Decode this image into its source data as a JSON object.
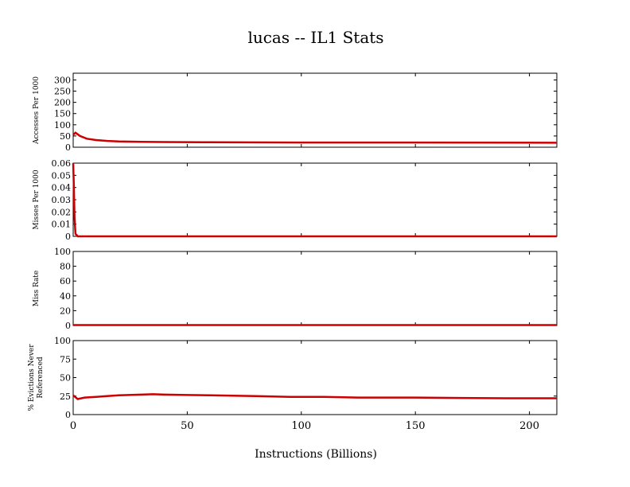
{
  "title": "lucas -- IL1  Stats",
  "colors": {
    "series_main": "#cc0000",
    "series_scatter": "#00cc00",
    "axis": "#000000"
  },
  "chart_data": [
    {
      "type": "line",
      "ylabel": "Accesses Per 1000",
      "xlim": [
        0,
        212
      ],
      "ylim": [
        0,
        330
      ],
      "yticks": [
        0,
        50,
        100,
        150,
        200,
        250,
        300
      ],
      "ytick_labels": [
        "0",
        "50",
        "100",
        "150",
        "200",
        "250",
        "300"
      ],
      "series": [
        {
          "x": [
            0,
            1,
            3,
            6,
            10,
            15,
            20,
            30,
            40,
            60,
            100,
            150,
            212
          ],
          "y": [
            55,
            65,
            50,
            38,
            32,
            28,
            26,
            24,
            23,
            22,
            21,
            21,
            20
          ]
        }
      ]
    },
    {
      "type": "line",
      "ylabel": "Misses Per 1000",
      "xlim": [
        0,
        212
      ],
      "ylim": [
        0,
        0.06
      ],
      "yticks": [
        0,
        0.01,
        0.02,
        0.03,
        0.04,
        0.05,
        0.06
      ],
      "ytick_labels": [
        "0",
        "0.01",
        "0.02",
        "0.03",
        "0.04",
        "0.05",
        "0.06"
      ],
      "series": [
        {
          "x": [
            0,
            0.3,
            0.6,
            1,
            2,
            5,
            50,
            100,
            150,
            212
          ],
          "y": [
            0.06,
            0.04,
            0.015,
            0.002,
            0,
            0,
            0,
            0,
            0,
            0
          ]
        }
      ]
    },
    {
      "type": "line",
      "ylabel": "Miss Rate",
      "xlim": [
        0,
        212
      ],
      "ylim": [
        0,
        100
      ],
      "yticks": [
        0,
        20,
        40,
        60,
        80,
        100
      ],
      "ytick_labels": [
        "0",
        "20",
        "40",
        "60",
        "80",
        "100"
      ],
      "series": [
        {
          "x": [
            0,
            50,
            100,
            150,
            212
          ],
          "y": [
            0.5,
            0.5,
            0.5,
            0.5,
            0.5
          ]
        }
      ]
    },
    {
      "type": "line",
      "ylabel": "% Evictions Never Referenced",
      "xlabel": "Instructions (Billions)",
      "xlim": [
        0,
        212
      ],
      "ylim": [
        0,
        100
      ],
      "yticks": [
        0,
        25,
        50,
        75,
        100
      ],
      "ytick_labels": [
        "0",
        "25",
        "50",
        "75",
        "100"
      ],
      "xticks": [
        0,
        50,
        100,
        150,
        200
      ],
      "xtick_labels": [
        "0",
        "50",
        "100",
        "150",
        "200"
      ],
      "series": [
        {
          "x": [
            0,
            2,
            5,
            10,
            20,
            30,
            35,
            40,
            50,
            60,
            70,
            80,
            95,
            110,
            125,
            150,
            170,
            190,
            212
          ],
          "y": [
            26,
            21,
            23,
            24,
            26,
            27,
            27.5,
            27,
            26.5,
            26,
            25.5,
            25,
            24,
            24,
            23,
            23,
            22.5,
            22,
            22
          ]
        }
      ]
    }
  ]
}
